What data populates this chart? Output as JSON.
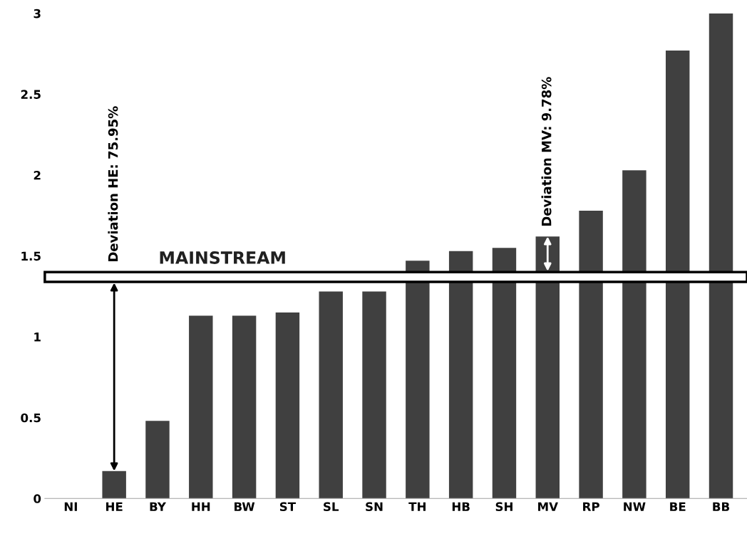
{
  "chart_data": {
    "type": "bar",
    "categories": [
      "NI",
      "HE",
      "BY",
      "HH",
      "BW",
      "ST",
      "SL",
      "SN",
      "TH",
      "HB",
      "SH",
      "MV",
      "RP",
      "NW",
      "BE",
      "BB"
    ],
    "values": [
      0,
      0.17,
      0.48,
      1.13,
      1.13,
      1.15,
      1.28,
      1.28,
      1.47,
      1.53,
      1.55,
      1.62,
      1.78,
      2.03,
      2.77,
      3.0
    ],
    "color": "#404040",
    "ylim": [
      0,
      3
    ],
    "yticks": [
      0,
      0.5,
      1,
      1.5,
      2,
      2.5,
      3
    ],
    "grid": false,
    "bands": [
      {
        "axis": "y",
        "from": 1.34,
        "to": 1.4,
        "label": "MAINSTREAM",
        "color": "#ffffff"
      }
    ],
    "annotations": [
      {
        "text": "Deviation HE: 75.95%",
        "x": "HE",
        "y": 1.4
      },
      {
        "text": "Deviation MV: 9.78%",
        "x": "MV",
        "y": 1.62
      }
    ]
  }
}
